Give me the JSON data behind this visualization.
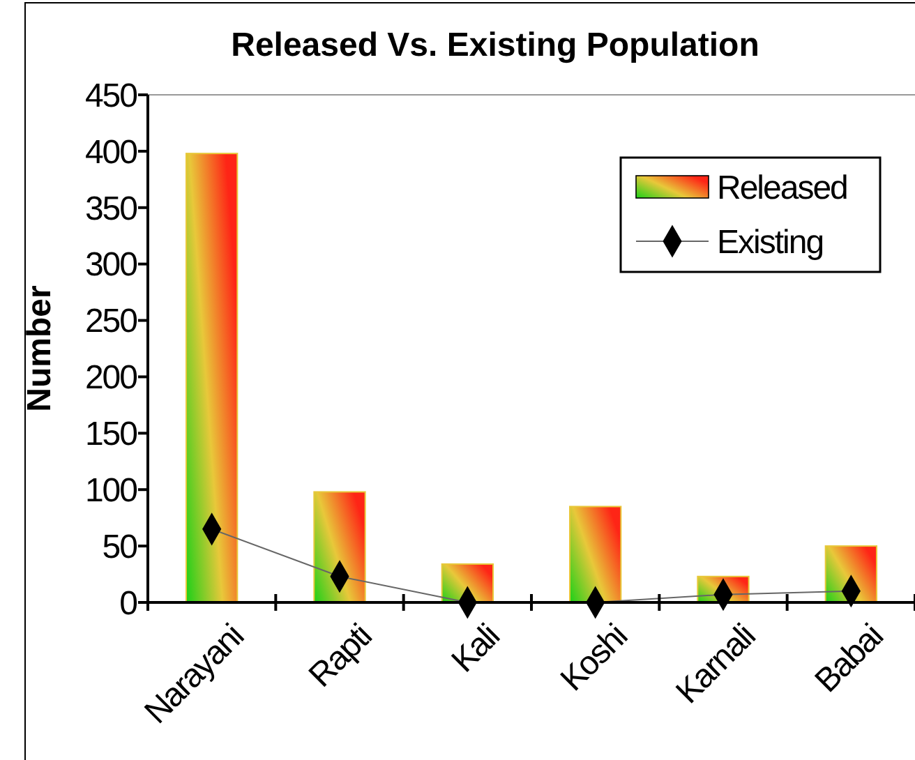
{
  "chart_data": {
    "type": "bar",
    "title": "Released Vs. Existing Population",
    "ylabel": "Number",
    "categories": [
      "Narayani",
      "Rapti",
      "Kali",
      "Koshi",
      "Karnali",
      "Babai"
    ],
    "series": [
      {
        "name": "Released",
        "color": "#e8c83a",
        "values": [
          398,
          98,
          34,
          85,
          23,
          50
        ]
      },
      {
        "name": "Existing",
        "type": "line",
        "color": "#000000",
        "values": [
          65,
          23,
          0,
          0,
          7,
          10
        ]
      }
    ],
    "ylim": [
      0,
      450
    ],
    "yticks": [
      0,
      50,
      100,
      150,
      200,
      250,
      300,
      350,
      400,
      450
    ],
    "grid": false,
    "legend": "top right",
    "marker": "diamond",
    "line_style": "solid"
  }
}
